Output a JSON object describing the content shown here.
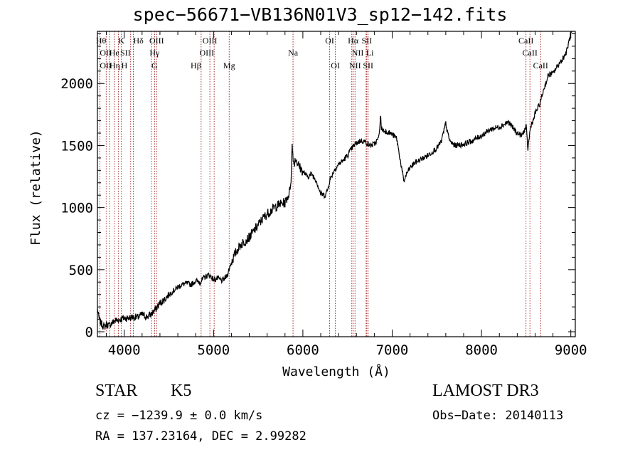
{
  "chart_data": {
    "type": "line",
    "title": "spec−56671−VB136N01V3_sp12−142.fits",
    "xlabel": "Wavelength (Å)",
    "ylabel": "Flux (relative)",
    "xlim": [
      3700,
      9050
    ],
    "ylim": [
      -40,
      2420
    ],
    "x_ticks": [
      4000,
      5000,
      6000,
      7000,
      8000,
      9000
    ],
    "x_tick_labels": [
      "4000",
      "5000",
      "6000",
      "7000",
      "8000",
      "9000"
    ],
    "y_ticks": [
      0,
      500,
      1000,
      1500,
      2000
    ],
    "y_tick_labels": [
      "0",
      "500",
      "1000",
      "1500",
      "2000"
    ],
    "series": [
      {
        "name": "flux",
        "color": "#000000",
        "x": [
          3700,
          3720,
          3740,
          3760,
          3780,
          3800,
          3830,
          3860,
          3900,
          3950,
          4000,
          4050,
          4100,
          4150,
          4200,
          4250,
          4300,
          4350,
          4400,
          4450,
          4500,
          4550,
          4600,
          4650,
          4700,
          4750,
          4800,
          4850,
          4900,
          4950,
          5000,
          5050,
          5100,
          5150,
          5200,
          5250,
          5300,
          5350,
          5400,
          5450,
          5500,
          5550,
          5600,
          5650,
          5700,
          5750,
          5800,
          5850,
          5870,
          5880,
          5890,
          5900,
          5920,
          5950,
          6000,
          6050,
          6100,
          6150,
          6200,
          6250,
          6280,
          6300,
          6350,
          6400,
          6450,
          6500,
          6550,
          6600,
          6650,
          6700,
          6750,
          6800,
          6850,
          6870,
          6880,
          6900,
          6950,
          7000,
          7050,
          7100,
          7130,
          7160,
          7200,
          7250,
          7300,
          7400,
          7500,
          7550,
          7580,
          7600,
          7620,
          7650,
          7700,
          7800,
          7900,
          8000,
          8100,
          8200,
          8300,
          8400,
          8450,
          8500,
          8520,
          8540,
          8560,
          8580,
          8600,
          8650,
          8700,
          8750,
          8800,
          8850,
          8900,
          8950,
          9000,
          9020
        ],
        "y": [
          180,
          100,
          70,
          50,
          40,
          60,
          50,
          70,
          90,
          100,
          110,
          110,
          120,
          115,
          140,
          120,
          140,
          180,
          230,
          260,
          300,
          330,
          360,
          380,
          390,
          380,
          410,
          400,
          440,
          460,
          420,
          430,
          410,
          450,
          560,
          640,
          700,
          730,
          760,
          810,
          860,
          910,
          950,
          980,
          1010,
          1030,
          1040,
          1120,
          1250,
          1500,
          1420,
          1350,
          1400,
          1340,
          1290,
          1250,
          1270,
          1220,
          1110,
          1100,
          1150,
          1220,
          1300,
          1350,
          1380,
          1420,
          1480,
          1520,
          1540,
          1530,
          1500,
          1510,
          1560,
          1740,
          1640,
          1620,
          1610,
          1590,
          1560,
          1340,
          1210,
          1270,
          1320,
          1360,
          1380,
          1420,
          1480,
          1530,
          1620,
          1680,
          1600,
          1530,
          1500,
          1510,
          1540,
          1580,
          1630,
          1650,
          1690,
          1600,
          1580,
          1650,
          1470,
          1600,
          1680,
          1700,
          1760,
          1830,
          1960,
          2070,
          2080,
          2140,
          2190,
          2250,
          2400,
          2420
        ]
      }
    ],
    "lines": [
      {
        "name": "Hθ",
        "wl": 3798,
        "row": 1,
        "align": "end"
      },
      {
        "name": "K",
        "wl": 3934,
        "row": 1,
        "align": "start"
      },
      {
        "name": "Hδ",
        "wl": 4102,
        "row": 1,
        "align": "start"
      },
      {
        "name": "OIII",
        "wl": 4363,
        "row": 1,
        "align": "middle"
      },
      {
        "name": "OIII",
        "wl": 4959,
        "row": 1,
        "align": "middle"
      },
      {
        "name": "OI",
        "wl": 6300,
        "row": 1,
        "align": "middle"
      },
      {
        "name": "Hα",
        "wl": 6563,
        "row": 1,
        "align": "middle"
      },
      {
        "name": "SII",
        "wl": 6716,
        "row": 1,
        "align": "middle"
      },
      {
        "name": "CaII",
        "wl": 8498,
        "row": 1,
        "align": "middle"
      },
      {
        "name": "OII",
        "wl": 3727,
        "row": 2,
        "align": "start"
      },
      {
        "name": "He",
        "wl": 3889,
        "row": 2,
        "align": "middle"
      },
      {
        "name": "SII",
        "wl": 4072,
        "row": 2,
        "align": "end"
      },
      {
        "name": "Hγ",
        "wl": 4340,
        "row": 2,
        "align": "middle"
      },
      {
        "name": "OIII",
        "wl": 5007,
        "row": 2,
        "align": "end"
      },
      {
        "name": "Na",
        "wl": 5890,
        "row": 2,
        "align": "middle"
      },
      {
        "name": "NII",
        "wl": 6548,
        "row": 2,
        "align": "start"
      },
      {
        "name": "Li",
        "wl": 6708,
        "row": 2,
        "align": "start"
      },
      {
        "name": "CaII",
        "wl": 8542,
        "row": 2,
        "align": "middle"
      },
      {
        "name": "OII",
        "wl": 3727,
        "row": 3,
        "align": "start"
      },
      {
        "name": "Hη",
        "wl": 3835,
        "row": 3,
        "align": "start"
      },
      {
        "name": "H",
        "wl": 3968,
        "row": 3,
        "align": "start"
      },
      {
        "name": "G",
        "wl": 4305,
        "row": 3,
        "align": "start"
      },
      {
        "name": "Hβ",
        "wl": 4861,
        "row": 3,
        "align": "end"
      },
      {
        "name": "Mg",
        "wl": 5175,
        "row": 3,
        "align": "middle"
      },
      {
        "name": "OI",
        "wl": 6364,
        "row": 3,
        "align": "middle"
      },
      {
        "name": "NII",
        "wl": 6584,
        "row": 3,
        "align": "middle"
      },
      {
        "name": "SII",
        "wl": 6731,
        "row": 3,
        "align": "middle"
      },
      {
        "name": "CaII",
        "wl": 8662,
        "row": 3,
        "align": "middle"
      }
    ],
    "line_color": "#a02020"
  },
  "info": {
    "obj_class": "STAR",
    "subclass": "K5",
    "survey": "LAMOST DR3",
    "cz": "cz = −1239.9 ± 0.0 km/s",
    "obs_date": "Obs−Date: 20140113",
    "radec": "RA = 137.23164, DEC =   2.99282"
  }
}
